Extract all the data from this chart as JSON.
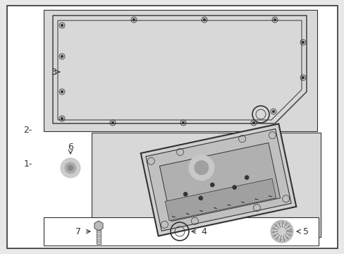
{
  "bg_color": "#e8e8e8",
  "white": "#ffffff",
  "line_color": "#333333",
  "text_color": "#333333",
  "light_gray": "#d8d8d8",
  "mid_gray": "#bbbbbb",
  "dark_gray": "#999999"
}
